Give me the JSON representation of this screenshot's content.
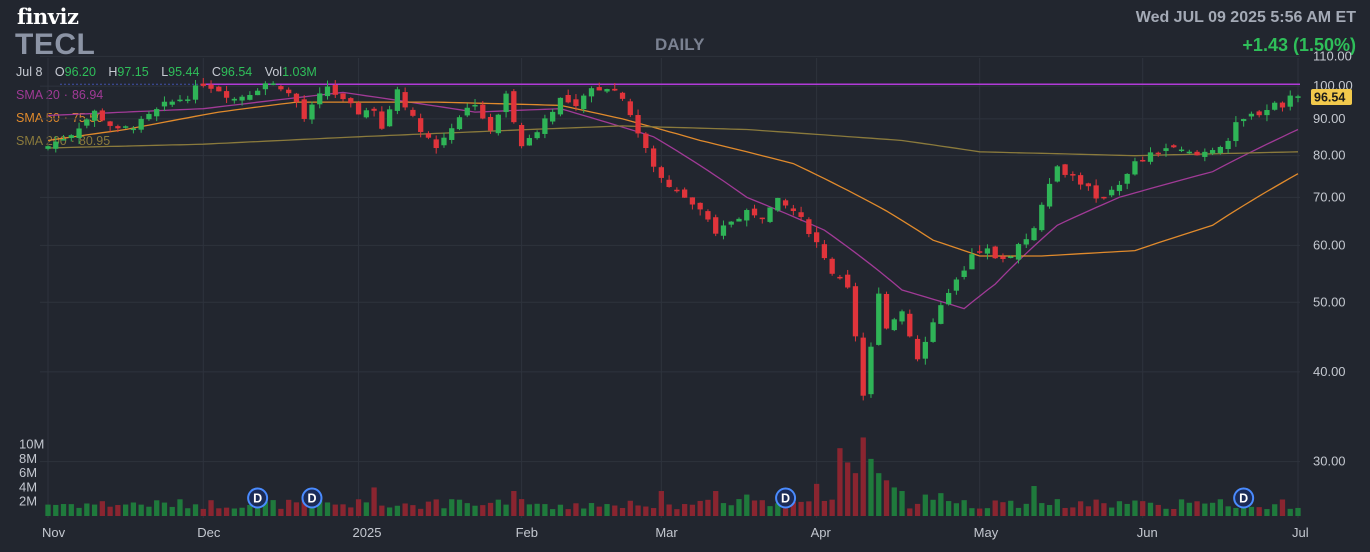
{
  "header": {
    "logo": "finviz",
    "ticker": "TECL",
    "period": "DAILY",
    "datetime": "Wed JUL 09 2025 5:56 AM ET",
    "change": "+1.43 (1.50%)"
  },
  "ohlc": {
    "date": "Jul 8",
    "open_label": "O",
    "open": "96.20",
    "high_label": "H",
    "high": "97.15",
    "low_label": "L",
    "low": "95.44",
    "close_label": "C",
    "close": "96.54",
    "vol_label": "Vol",
    "vol": "1.03M"
  },
  "indicators": [
    {
      "label": "SMA 20",
      "value": "86.94",
      "color": "#a03a96"
    },
    {
      "label": "SMA 50",
      "value": "75.50",
      "color": "#e08a2c"
    },
    {
      "label": "SMA 200",
      "value": "80.95",
      "color": "#8a7a3c"
    }
  ],
  "colors": {
    "up": "#2fb457",
    "down": "#e0343b",
    "vol_up": "#1f7a3c",
    "vol_down": "#8a2530",
    "grid": "#2e333d",
    "resistance": "#b13ad8",
    "last_price_bg": "#f2c94c"
  },
  "chart_data": {
    "type": "candlestick",
    "last_price": "96.54",
    "resistance": 100.6,
    "price_axis": {
      "ticks": [
        30,
        40,
        50,
        60,
        70,
        80,
        90,
        100,
        110
      ],
      "tick_labels": [
        "30.00",
        "40.00",
        "50.00",
        "60.00",
        "70.00",
        "80.00",
        "90.00",
        "100.00",
        "110.00"
      ]
    },
    "volume_axis": {
      "ticks": [
        2,
        4,
        6,
        8,
        10
      ],
      "tick_labels": [
        "2M",
        "4M",
        "6M",
        "8M",
        "10M"
      ]
    },
    "x_labels": [
      "Nov",
      "Dec",
      "2025",
      "Feb",
      "Mar",
      "Apr",
      "May",
      "Jun",
      "Jul"
    ],
    "x_label_index": [
      0,
      20,
      40,
      61,
      79,
      99,
      120,
      141,
      161
    ],
    "dividends": [
      {
        "index": 27,
        "label": "D"
      },
      {
        "index": 34,
        "label": "D"
      },
      {
        "index": 95,
        "label": "D"
      },
      {
        "index": 154,
        "label": "D"
      }
    ],
    "close_anchors": [
      [
        0,
        82.5
      ],
      [
        3,
        86
      ],
      [
        6,
        92
      ],
      [
        9,
        86.5
      ],
      [
        12,
        89
      ],
      [
        15,
        94
      ],
      [
        18,
        97
      ],
      [
        20,
        101
      ],
      [
        22,
        99
      ],
      [
        24,
        96
      ],
      [
        26,
        98
      ],
      [
        28,
        101
      ],
      [
        30,
        100
      ],
      [
        32,
        95
      ],
      [
        33,
        90
      ],
      [
        36,
        100
      ],
      [
        38,
        95
      ],
      [
        40,
        92
      ],
      [
        42,
        93
      ],
      [
        43,
        87
      ],
      [
        45,
        99
      ],
      [
        47,
        90
      ],
      [
        50,
        82
      ],
      [
        53,
        91
      ],
      [
        55,
        95
      ],
      [
        57,
        86
      ],
      [
        59,
        97
      ],
      [
        61,
        83
      ],
      [
        62,
        84
      ],
      [
        64,
        90
      ],
      [
        66,
        96
      ],
      [
        68,
        93
      ],
      [
        70,
        99
      ],
      [
        72,
        100
      ],
      [
        74,
        97
      ],
      [
        76,
        86
      ],
      [
        78,
        77
      ],
      [
        80,
        72
      ],
      [
        82,
        70
      ],
      [
        84,
        67
      ],
      [
        86,
        62
      ],
      [
        88,
        65
      ],
      [
        90,
        67
      ],
      [
        92,
        66
      ],
      [
        94,
        69
      ],
      [
        96,
        67
      ],
      [
        98,
        63
      ],
      [
        100,
        58
      ],
      [
        101,
        55
      ],
      [
        103,
        52
      ],
      [
        104,
        45
      ],
      [
        105,
        37
      ],
      [
        106,
        43
      ],
      [
        107,
        52
      ],
      [
        108,
        46
      ],
      [
        110,
        49
      ],
      [
        111,
        45
      ],
      [
        112,
        42
      ],
      [
        114,
        47
      ],
      [
        116,
        52
      ],
      [
        118,
        55
      ],
      [
        119,
        58
      ],
      [
        121,
        59
      ],
      [
        123,
        57
      ],
      [
        125,
        60
      ],
      [
        127,
        63
      ],
      [
        128,
        69
      ],
      [
        129,
        74
      ],
      [
        130,
        77
      ],
      [
        132,
        75
      ],
      [
        134,
        72
      ],
      [
        135,
        69
      ],
      [
        137,
        72
      ],
      [
        139,
        75
      ],
      [
        140,
        78
      ],
      [
        142,
        80
      ],
      [
        144,
        82
      ],
      [
        146,
        81
      ],
      [
        148,
        80
      ],
      [
        150,
        82
      ],
      [
        152,
        84
      ],
      [
        153,
        88
      ],
      [
        155,
        91
      ],
      [
        157,
        93
      ],
      [
        158,
        95
      ],
      [
        159,
        93
      ],
      [
        160,
        98
      ],
      [
        161,
        96.5
      ]
    ],
    "sma_anchors": {
      "SMA 20": [
        [
          0,
          91
        ],
        [
          20,
          93
        ],
        [
          38,
          98
        ],
        [
          55,
          92
        ],
        [
          66,
          93
        ],
        [
          72,
          89
        ],
        [
          78,
          85
        ],
        [
          90,
          70
        ],
        [
          100,
          63
        ],
        [
          110,
          52
        ],
        [
          118,
          49
        ],
        [
          122,
          53
        ],
        [
          130,
          64
        ],
        [
          138,
          70
        ],
        [
          150,
          76
        ],
        [
          161,
          87
        ]
      ],
      "SMA 50": [
        [
          0,
          84
        ],
        [
          10,
          87
        ],
        [
          22,
          92
        ],
        [
          32,
          95
        ],
        [
          50,
          95
        ],
        [
          66,
          94
        ],
        [
          74,
          90
        ],
        [
          84,
          84
        ],
        [
          96,
          78
        ],
        [
          108,
          67
        ],
        [
          114,
          61
        ],
        [
          120,
          58
        ],
        [
          128,
          58
        ],
        [
          140,
          59
        ],
        [
          150,
          64
        ],
        [
          161,
          75.5
        ]
      ],
      "SMA 200": [
        [
          0,
          82
        ],
        [
          20,
          83
        ],
        [
          40,
          85
        ],
        [
          62,
          87
        ],
        [
          74,
          88
        ],
        [
          90,
          87
        ],
        [
          110,
          84
        ],
        [
          120,
          81
        ],
        [
          140,
          80
        ],
        [
          161,
          81
        ]
      ]
    },
    "volume_bars": {
      "baseline_millions": 1.6,
      "spikes": [
        [
          79,
          3.5
        ],
        [
          90,
          3.0
        ],
        [
          99,
          4.5
        ],
        [
          102,
          9.5
        ],
        [
          103,
          7.5
        ],
        [
          104,
          6.0
        ],
        [
          105,
          11.0
        ],
        [
          106,
          8.0
        ],
        [
          107,
          6.0
        ],
        [
          108,
          5.0
        ],
        [
          109,
          4.0
        ],
        [
          110,
          3.5
        ],
        [
          113,
          3.0
        ],
        [
          115,
          3.2
        ],
        [
          127,
          4.2
        ],
        [
          42,
          4.0
        ],
        [
          60,
          3.5
        ],
        [
          86,
          3.5
        ]
      ]
    }
  }
}
